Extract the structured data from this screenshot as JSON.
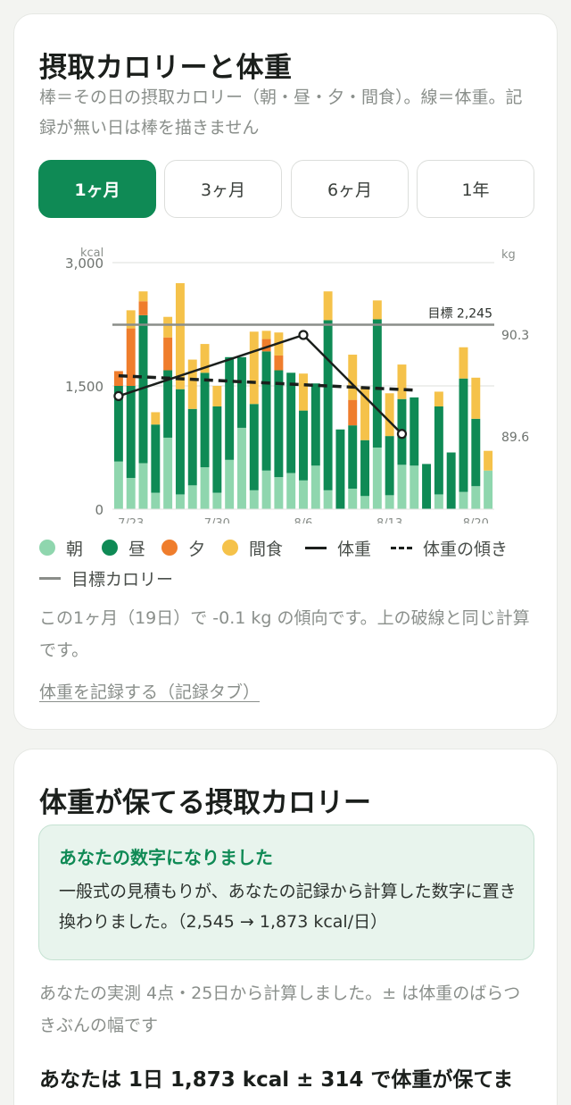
{
  "intake_card": {
    "title": "摂取カロリーと体重",
    "description": "棒＝その日の摂取カロリー（朝・昼・夕・間食）。線＝体重。記録が無い日は棒を描きません",
    "tabs": [
      {
        "label": "1ヶ月",
        "active": true
      },
      {
        "label": "3ヶ月",
        "active": false
      },
      {
        "label": "6ヶ月",
        "active": false
      },
      {
        "label": "1年",
        "active": false
      }
    ],
    "legend": {
      "breakfast": "朝",
      "lunch": "昼",
      "dinner": "夕",
      "snack": "間食",
      "weight": "体重",
      "weight_trend": "体重の傾き",
      "target": "目標カロリー"
    },
    "trend_text": "この1ヶ月（19日）で -0.1 kg の傾向です。上の破線と同じ計算です。",
    "record_link": "体重を記録する（記録タブ）"
  },
  "chart_data": {
    "type": "bar",
    "stacked": true,
    "left_axis": {
      "unit_label": "kcal",
      "ticks": [
        "3,000",
        "1,500",
        "0"
      ],
      "range": [
        0,
        3000
      ]
    },
    "right_axis": {
      "unit_label": "kg",
      "ticks": [
        "90.3",
        "89.6"
      ]
    },
    "x_tick_labels": [
      "7/23",
      "7/30",
      "8/6",
      "8/13",
      "8/20"
    ],
    "target": {
      "label": "目標 2,245",
      "value": 2245
    },
    "colors": {
      "breakfast": "#8fd6ae",
      "lunch": "#0f8a55",
      "dinner": "#ef7d2c",
      "snack": "#f5c24a",
      "weight": "#1b1f1c",
      "target": "#8a8d89"
    },
    "bars": [
      {
        "day": 0,
        "breakfast": 580,
        "lunch": 920,
        "dinner": 180,
        "snack": 0
      },
      {
        "day": 1,
        "breakfast": 380,
        "lunch": 1120,
        "dinner": 700,
        "snack": 220
      },
      {
        "day": 2,
        "breakfast": 560,
        "lunch": 1800,
        "dinner": 170,
        "snack": 120
      },
      {
        "day": 3,
        "breakfast": 200,
        "lunch": 830,
        "dinner": 0,
        "snack": 150
      },
      {
        "day": 4,
        "breakfast": 870,
        "lunch": 820,
        "dinner": 400,
        "snack": 250
      },
      {
        "day": 5,
        "breakfast": 180,
        "lunch": 1280,
        "dinner": 0,
        "snack": 1290
      },
      {
        "day": 6,
        "breakfast": 290,
        "lunch": 930,
        "dinner": 0,
        "snack": 600
      },
      {
        "day": 7,
        "breakfast": 510,
        "lunch": 1150,
        "dinner": 0,
        "snack": 350
      },
      {
        "day": 8,
        "breakfast": 200,
        "lunch": 1050,
        "dinner": 0,
        "snack": 250
      },
      {
        "day": 9,
        "breakfast": 600,
        "lunch": 1250,
        "dinner": 0,
        "snack": 0
      },
      {
        "day": 10,
        "breakfast": 990,
        "lunch": 860,
        "dinner": 0,
        "snack": 0
      },
      {
        "day": 11,
        "breakfast": 230,
        "lunch": 1050,
        "dinner": 0,
        "snack": 880
      },
      {
        "day": 12,
        "breakfast": 470,
        "lunch": 1450,
        "dinner": 150,
        "snack": 100
      },
      {
        "day": 13,
        "breakfast": 390,
        "lunch": 1300,
        "dinner": 180,
        "snack": 280
      },
      {
        "day": 14,
        "breakfast": 440,
        "lunch": 1220,
        "dinner": 0,
        "snack": 0
      },
      {
        "day": 15,
        "breakfast": 350,
        "lunch": 850,
        "dinner": 0,
        "snack": 450
      },
      {
        "day": 16,
        "breakfast": 530,
        "lunch": 1000,
        "dinner": 0,
        "snack": 0
      },
      {
        "day": 17,
        "breakfast": 230,
        "lunch": 2070,
        "dinner": 0,
        "snack": 350
      },
      {
        "day": 18,
        "breakfast": 0,
        "lunch": 970,
        "dinner": 0,
        "snack": 0
      },
      {
        "day": 19,
        "breakfast": 250,
        "lunch": 770,
        "dinner": 310,
        "snack": 550
      },
      {
        "day": 20,
        "breakfast": 160,
        "lunch": 680,
        "dinner": 0,
        "snack": 650
      },
      {
        "day": 21,
        "breakfast": 750,
        "lunch": 1560,
        "dinner": 0,
        "snack": 230
      },
      {
        "day": 22,
        "breakfast": 170,
        "lunch": 720,
        "dinner": 0,
        "snack": 520
      },
      {
        "day": 23,
        "breakfast": 540,
        "lunch": 800,
        "dinner": 0,
        "snack": 420
      },
      {
        "day": 24,
        "breakfast": 530,
        "lunch": 830,
        "dinner": 0,
        "snack": 0
      },
      {
        "day": 25,
        "breakfast": 0,
        "lunch": 550,
        "dinner": 0,
        "snack": 0
      },
      {
        "day": 26,
        "breakfast": 180,
        "lunch": 1070,
        "dinner": 0,
        "snack": 180
      },
      {
        "day": 27,
        "breakfast": 0,
        "lunch": 690,
        "dinner": 0,
        "snack": 0
      },
      {
        "day": 28,
        "breakfast": 210,
        "lunch": 1380,
        "dinner": 0,
        "snack": 380
      },
      {
        "day": 29,
        "breakfast": 280,
        "lunch": 820,
        "dinner": 0,
        "snack": 500
      },
      {
        "day": 30,
        "breakfast": 470,
        "lunch": 0,
        "dinner": 0,
        "snack": 240
      }
    ],
    "weight_series": [
      {
        "day": 0,
        "kg": 89.88
      },
      {
        "day": 15,
        "kg": 90.3
      },
      {
        "day": 23,
        "kg": 89.62
      }
    ],
    "weight_trend": [
      {
        "day": 0,
        "kg": 90.02
      },
      {
        "day": 23,
        "kg": 89.92
      }
    ]
  },
  "maintenance_card": {
    "title": "体重が保てる摂取カロリー",
    "notice_title": "あなたの数字になりました",
    "notice_body": "一般式の見積もりが、あなたの記録から計算した数字に置き換わりました。（2,545 → 1,873 kcal/日）",
    "basis": "あなたの実測 4点・25日から計算しました。± は体重のばらつきぶんの幅です",
    "result": "あなたは 1日 1,873 kcal ± 314 で体重が保てま"
  }
}
